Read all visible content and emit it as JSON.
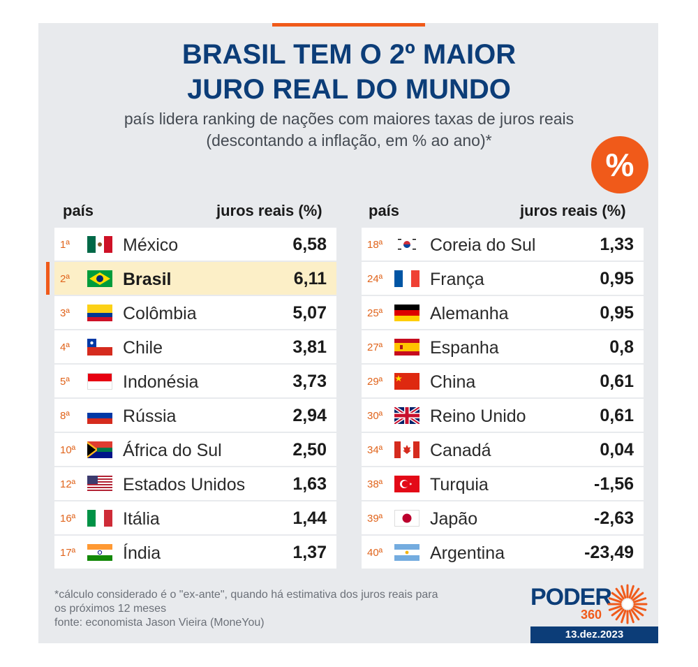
{
  "header": {
    "title_line1": "BRASIL TEM O 2º MAIOR",
    "title_line2": "JURO REAL DO MUNDO",
    "subtitle_line1": "país lidera ranking de nações com maiores taxas de juros reais",
    "subtitle_line2": "(descontando a inflação, em % ao ano)*",
    "badge": "%"
  },
  "colors": {
    "accent": "#f05a1a",
    "navy": "#0c3d78",
    "highlight_row": "#fcefc7",
    "background": "#e8eaed"
  },
  "chart_data": {
    "type": "table",
    "columns": [
      "país",
      "juros reais (%)"
    ],
    "left": [
      {
        "rank": "1ª",
        "country": "México",
        "value": "6,58",
        "flag": "mexico-flag-icon"
      },
      {
        "rank": "2ª",
        "country": "Brasil",
        "value": "6,11",
        "flag": "brazil-flag-icon",
        "highlight": true
      },
      {
        "rank": "3ª",
        "country": "Colômbia",
        "value": "5,07",
        "flag": "colombia-flag-icon"
      },
      {
        "rank": "4ª",
        "country": "Chile",
        "value": "3,81",
        "flag": "chile-flag-icon"
      },
      {
        "rank": "5ª",
        "country": "Indonésia",
        "value": "3,73",
        "flag": "indonesia-flag-icon"
      },
      {
        "rank": "8ª",
        "country": "Rússia",
        "value": "2,94",
        "flag": "russia-flag-icon"
      },
      {
        "rank": "10ª",
        "country": "África do Sul",
        "value": "2,50",
        "flag": "south-africa-flag-icon"
      },
      {
        "rank": "12ª",
        "country": "Estados Unidos",
        "value": "1,63",
        "flag": "usa-flag-icon"
      },
      {
        "rank": "16ª",
        "country": "Itália",
        "value": "1,44",
        "flag": "italy-flag-icon"
      },
      {
        "rank": "17ª",
        "country": "Índia",
        "value": "1,37",
        "flag": "india-flag-icon"
      }
    ],
    "right": [
      {
        "rank": "18ª",
        "country": "Coreia do Sul",
        "value": "1,33",
        "flag": "south-korea-flag-icon"
      },
      {
        "rank": "24ª",
        "country": "França",
        "value": "0,95",
        "flag": "france-flag-icon"
      },
      {
        "rank": "25ª",
        "country": "Alemanha",
        "value": "0,95",
        "flag": "germany-flag-icon"
      },
      {
        "rank": "27ª",
        "country": "Espanha",
        "value": "0,8",
        "flag": "spain-flag-icon"
      },
      {
        "rank": "29ª",
        "country": "China",
        "value": "0,61",
        "flag": "china-flag-icon"
      },
      {
        "rank": "30ª",
        "country": "Reino Unido",
        "value": "0,61",
        "flag": "uk-flag-icon"
      },
      {
        "rank": "34ª",
        "country": "Canadá",
        "value": "0,04",
        "flag": "canada-flag-icon"
      },
      {
        "rank": "38ª",
        "country": "Turquia",
        "value": "-1,56",
        "flag": "turkey-flag-icon"
      },
      {
        "rank": "39ª",
        "country": "Japão",
        "value": "-2,63",
        "flag": "japan-flag-icon"
      },
      {
        "rank": "40ª",
        "country": "Argentina",
        "value": "-23,49",
        "flag": "argentina-flag-icon"
      }
    ]
  },
  "footer": {
    "note_line1": "*cálculo considerado é o \"ex-ante\", quando há estimativa dos juros reais para",
    "note_line2": "os próximos 12 meses",
    "source": "fonte: economista Jason Vieira (MoneYou)",
    "logo_word": "PODER",
    "logo_number": "360",
    "date": "13.dez.2023"
  }
}
